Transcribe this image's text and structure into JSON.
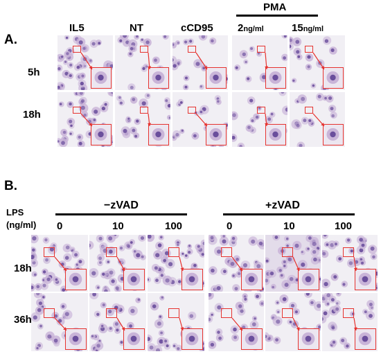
{
  "panelA": {
    "letter": "A.",
    "pma_label": "PMA",
    "columns": [
      {
        "name": "IL5",
        "unit": ""
      },
      {
        "name": "NT",
        "unit": ""
      },
      {
        "name": "cCD95",
        "unit": ""
      },
      {
        "name": "2",
        "unit": "ng/ml"
      },
      {
        "name": "15",
        "unit": "ng/ml"
      }
    ],
    "rows": [
      "5h",
      "18h"
    ]
  },
  "panelB": {
    "letter": "B.",
    "lps_label_line1": "LPS",
    "lps_label_line2": "(ng/ml)",
    "groups": [
      "−zVAD",
      "+zVAD"
    ],
    "doses": [
      "0",
      "10",
      "100"
    ],
    "rows": [
      "18h",
      "36h"
    ]
  },
  "colors": {
    "background": "#f1eff4",
    "cell_pale": "#c9b4d8",
    "nucleus": "#6a4e9c",
    "inset_border": "#e6322e"
  }
}
